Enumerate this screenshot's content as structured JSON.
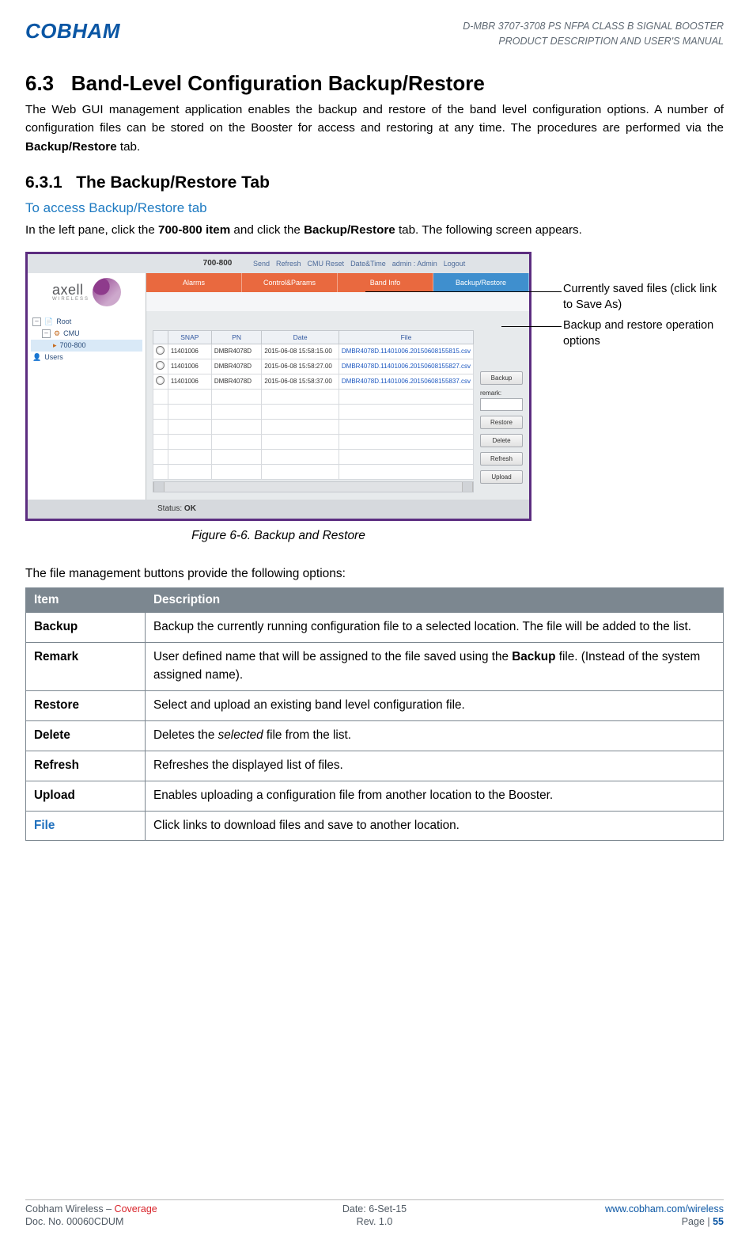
{
  "header": {
    "logo": "COBHAM",
    "doc_line1": "D-MBR 3707-3708 PS NFPA CLASS B SIGNAL BOOSTER",
    "doc_line2": "PRODUCT DESCRIPTION AND USER'S MANUAL"
  },
  "sections": {
    "h2_num": "6.3",
    "h2_title": "Band-Level Configuration Backup/Restore",
    "intro_text_pre": "The Web GUI management application enables the backup and restore of the band level configuration options. A number of configuration files can be stored on the Booster for access and restoring at any time. The procedures are performed via the ",
    "intro_bold": "Backup/Restore",
    "intro_text_post": " tab.",
    "h3_num": "6.3.1",
    "h3_title": "The Backup/Restore Tab",
    "h4_title": "To access Backup/Restore tab",
    "access_pre": "In the left pane, click the ",
    "access_bold1": "700-800 item",
    "access_mid": " and click the ",
    "access_bold2": "Backup/Restore",
    "access_post": " tab. The following screen appears."
  },
  "screenshot": {
    "band_title": "700-800",
    "top_links": [
      "Send",
      "Refresh",
      "CMU Reset",
      "Date&Time"
    ],
    "admin_label": "admin : Admin",
    "logout": "Logout",
    "brand": "axell",
    "brand_sub": "WIRELESS",
    "tree": [
      "Root",
      "CMU",
      "700-800",
      "Users"
    ],
    "tabs": [
      "Alarms",
      "Control&Params",
      "Band Info",
      "Backup/Restore"
    ],
    "grid_headers": [
      "",
      "SNAP",
      "PN",
      "Date",
      "File"
    ],
    "rows": [
      {
        "snap": "11401006",
        "pn": "DMBR4078D",
        "date": "2015-06-08 15:58:15.00",
        "file": "DMBR4078D.11401006.20150608155815.csv"
      },
      {
        "snap": "11401006",
        "pn": "DMBR4078D",
        "date": "2015-06-08 15:58:27.00",
        "file": "DMBR4078D.11401006.20150608155827.csv"
      },
      {
        "snap": "11401006",
        "pn": "DMBR4078D",
        "date": "2015-06-08 15:58:37.00",
        "file": "DMBR4078D.11401006.20150608155837.csv"
      }
    ],
    "ops": {
      "backup": "Backup",
      "remark_label": "remark:",
      "restore": "Restore",
      "delete": "Delete",
      "refresh": "Refresh",
      "upload": "Upload"
    },
    "status_label": "Status:",
    "status_value": "OK"
  },
  "callouts": {
    "c1": "Currently saved files (click link to Save As)",
    "c2": "Backup and restore operation options"
  },
  "caption": "Figure 6-6. Backup and Restore",
  "options_intro": "The file management buttons provide the following options:",
  "table": {
    "h_item": "Item",
    "h_desc": "Description",
    "rows": [
      {
        "key": "Backup",
        "key_class": "",
        "desc_pre": "Backup the currently running configuration file to a selected location. The file will be added to the list."
      },
      {
        "key": "Remark",
        "key_class": "",
        "desc_pre": "User defined name that will be assigned to the file saved using the ",
        "desc_bold": "Backup",
        "desc_post": " file. (Instead of the system assigned name)."
      },
      {
        "key": "Restore",
        "key_class": "",
        "desc_pre": "Select and upload an existing band level configuration file."
      },
      {
        "key": "Delete",
        "key_class": "",
        "desc_pre": "Deletes the ",
        "desc_italic": "selected",
        "desc_post": " file from the list."
      },
      {
        "key": "Refresh",
        "key_class": "",
        "desc_pre": "Refreshes the displayed list of files."
      },
      {
        "key": "Upload",
        "key_class": "",
        "desc_pre": "Enables uploading a configuration file from another location to the Booster."
      },
      {
        "key": "File",
        "key_class": "file-link",
        "desc_pre": "Click links to download files and save to another location."
      }
    ]
  },
  "footer": {
    "l1_left_a": "Cobham Wireless",
    "l1_left_sep": " – ",
    "l1_left_b": "Coverage",
    "l1_center": "Date: 6-Set-15",
    "l1_right": "www.cobham.com/wireless",
    "l2_left": "Doc. No. 00060CDUM",
    "l2_center": "Rev. 1.0",
    "l2_right_pre": "Page | ",
    "l2_right_num": "55"
  }
}
